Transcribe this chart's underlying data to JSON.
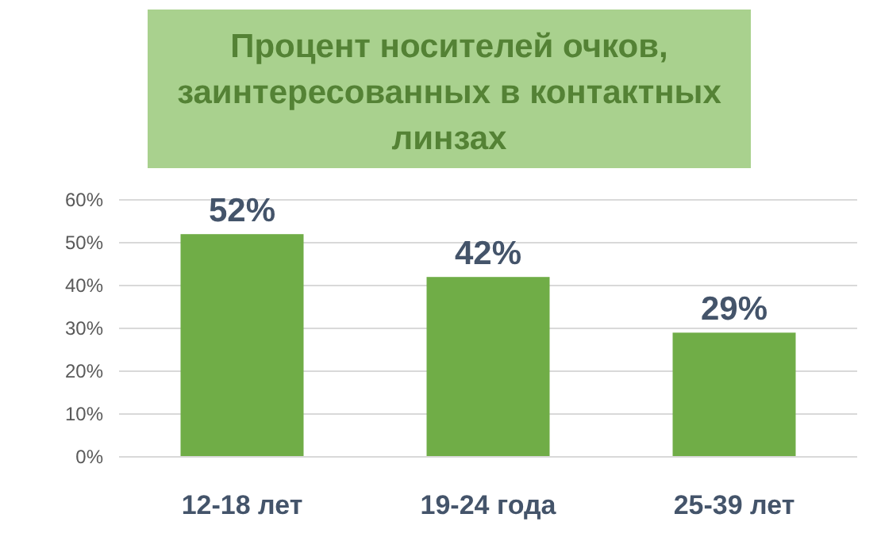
{
  "chart_data": {
    "type": "bar",
    "title": "Процент носителей очков,\nзаинтересованных в контактных\nлинзах",
    "categories": [
      "12-18 лет",
      "19-24 года",
      "25-39 лет"
    ],
    "values": [
      52,
      42,
      29
    ],
    "color": "#70ad47",
    "value_labels": [
      "52%",
      "42%",
      "29%"
    ],
    "ylim": [
      0,
      60
    ],
    "yticks": [
      {
        "value": 0,
        "label": "0%"
      },
      {
        "value": 10,
        "label": "10%"
      },
      {
        "value": 20,
        "label": "20%"
      },
      {
        "value": 30,
        "label": "30%"
      },
      {
        "value": 40,
        "label": "40%"
      },
      {
        "value": 50,
        "label": "50%"
      },
      {
        "value": 60,
        "label": "60%"
      }
    ],
    "grid": "y"
  }
}
